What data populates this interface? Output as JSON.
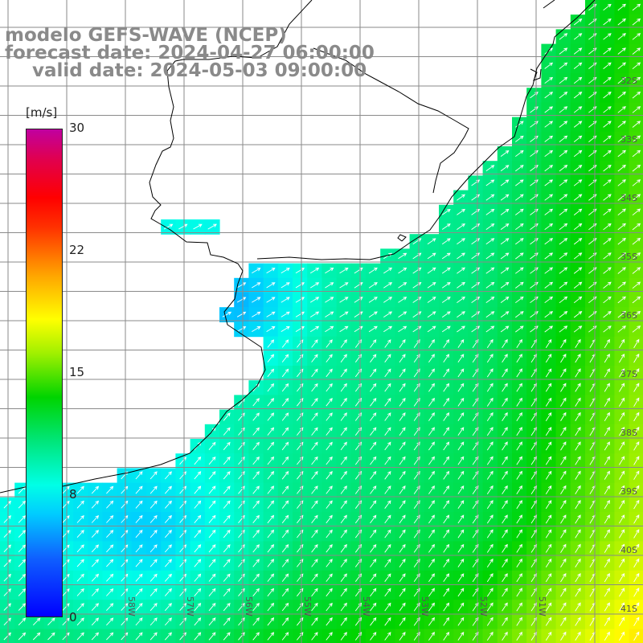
{
  "title": {
    "line1": "modelo GEFS-WAVE (NCEP)",
    "line2": "forecast date: 2024-04-27 06:00:00",
    "line3": "valid date: 2024-05-03 09:00:00"
  },
  "colorbar": {
    "unit": "[m/s]",
    "ticks": [
      "30",
      "22",
      "15",
      "8",
      "0"
    ],
    "colors": [
      "#0000ff",
      "#00ffff",
      "#00d400",
      "#ffff00",
      "#ff0000",
      "#c000a0"
    ]
  },
  "lat_labels": [
    "32S",
    "33S",
    "34S",
    "35S",
    "36S",
    "37S",
    "38S",
    "39S",
    "40S",
    "41S"
  ],
  "lon_labels": [
    "58W",
    "57W",
    "56W",
    "55W",
    "54W",
    "53W",
    "52W",
    "51W"
  ],
  "colors": {
    "land": "#ffffff",
    "grid": "#8a8a8a",
    "coast": "#000000",
    "arrow": "#ffffff"
  }
}
